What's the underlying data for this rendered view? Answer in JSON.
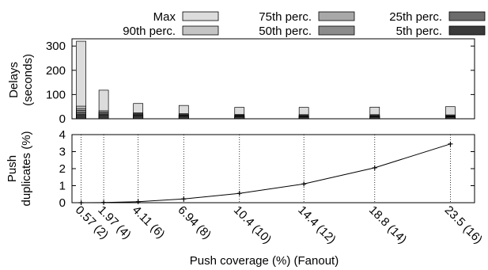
{
  "chart_data": [
    {
      "type": "bar",
      "subtype": "stacked-percentile",
      "ylabel": [
        "Delays",
        "(seconds)"
      ],
      "ylim": [
        0,
        330
      ],
      "yticks": [
        0,
        100,
        200,
        300
      ],
      "categories": [
        "0.57 (2)",
        "1.97 (4)",
        "4.11 (6)",
        "6.94 (8)",
        "10.4 (10)",
        "14.4 (12)",
        "18.8 (14)",
        "23.5 (16)"
      ],
      "legend": {
        "placement": "top",
        "entries": [
          {
            "name": "Max",
            "color": "#dcdcdc"
          },
          {
            "name": "75th perc.",
            "color": "#a8a8a8"
          },
          {
            "name": "25th perc.",
            "color": "#6c6c6c"
          },
          {
            "name": "90th perc.",
            "color": "#c4c4c4"
          },
          {
            "name": "50th perc.",
            "color": "#8c8c8c"
          },
          {
            "name": "5th perc.",
            "color": "#3a3a3a"
          }
        ]
      },
      "series": [
        {
          "name": "Max",
          "values": [
            320,
            118,
            63,
            55,
            47,
            47,
            48,
            50
          ]
        },
        {
          "name": "90th perc.",
          "values": [
            52,
            33,
            25,
            21,
            18,
            17,
            17,
            16
          ]
        },
        {
          "name": "75th perc.",
          "values": [
            42,
            28,
            21,
            18,
            15,
            14,
            14,
            13
          ]
        },
        {
          "name": "50th perc.",
          "values": [
            34,
            23,
            18,
            15,
            13,
            12,
            12,
            11
          ]
        },
        {
          "name": "25th perc.",
          "values": [
            26,
            19,
            15,
            13,
            11,
            10,
            10,
            9
          ]
        },
        {
          "name": "5th perc.",
          "values": [
            17,
            14,
            11,
            10,
            8,
            7,
            7,
            7
          ]
        }
      ]
    },
    {
      "type": "line",
      "ylabel": [
        "Push",
        "duplicates (%)"
      ],
      "xlabel": "Push coverage (%) (Fanout)",
      "ylim": [
        0,
        4
      ],
      "yticks": [
        0,
        1,
        2,
        3,
        4
      ],
      "x": [
        0.57,
        1.97,
        4.11,
        6.94,
        10.4,
        14.4,
        18.8,
        23.5
      ],
      "xlim": [
        0,
        25
      ],
      "xticklabels": [
        "0.57 (2)",
        "1.97 (4)",
        "4.11 (6)",
        "6.94 (8)",
        "10.4 (10)",
        "14.4 (12)",
        "18.8 (14)",
        "23.5 (16)"
      ],
      "grid": "vertical-dotted",
      "series": [
        {
          "name": "",
          "values": [
            0.0,
            0.01,
            0.06,
            0.22,
            0.55,
            1.1,
            2.05,
            3.45
          ]
        }
      ]
    }
  ]
}
